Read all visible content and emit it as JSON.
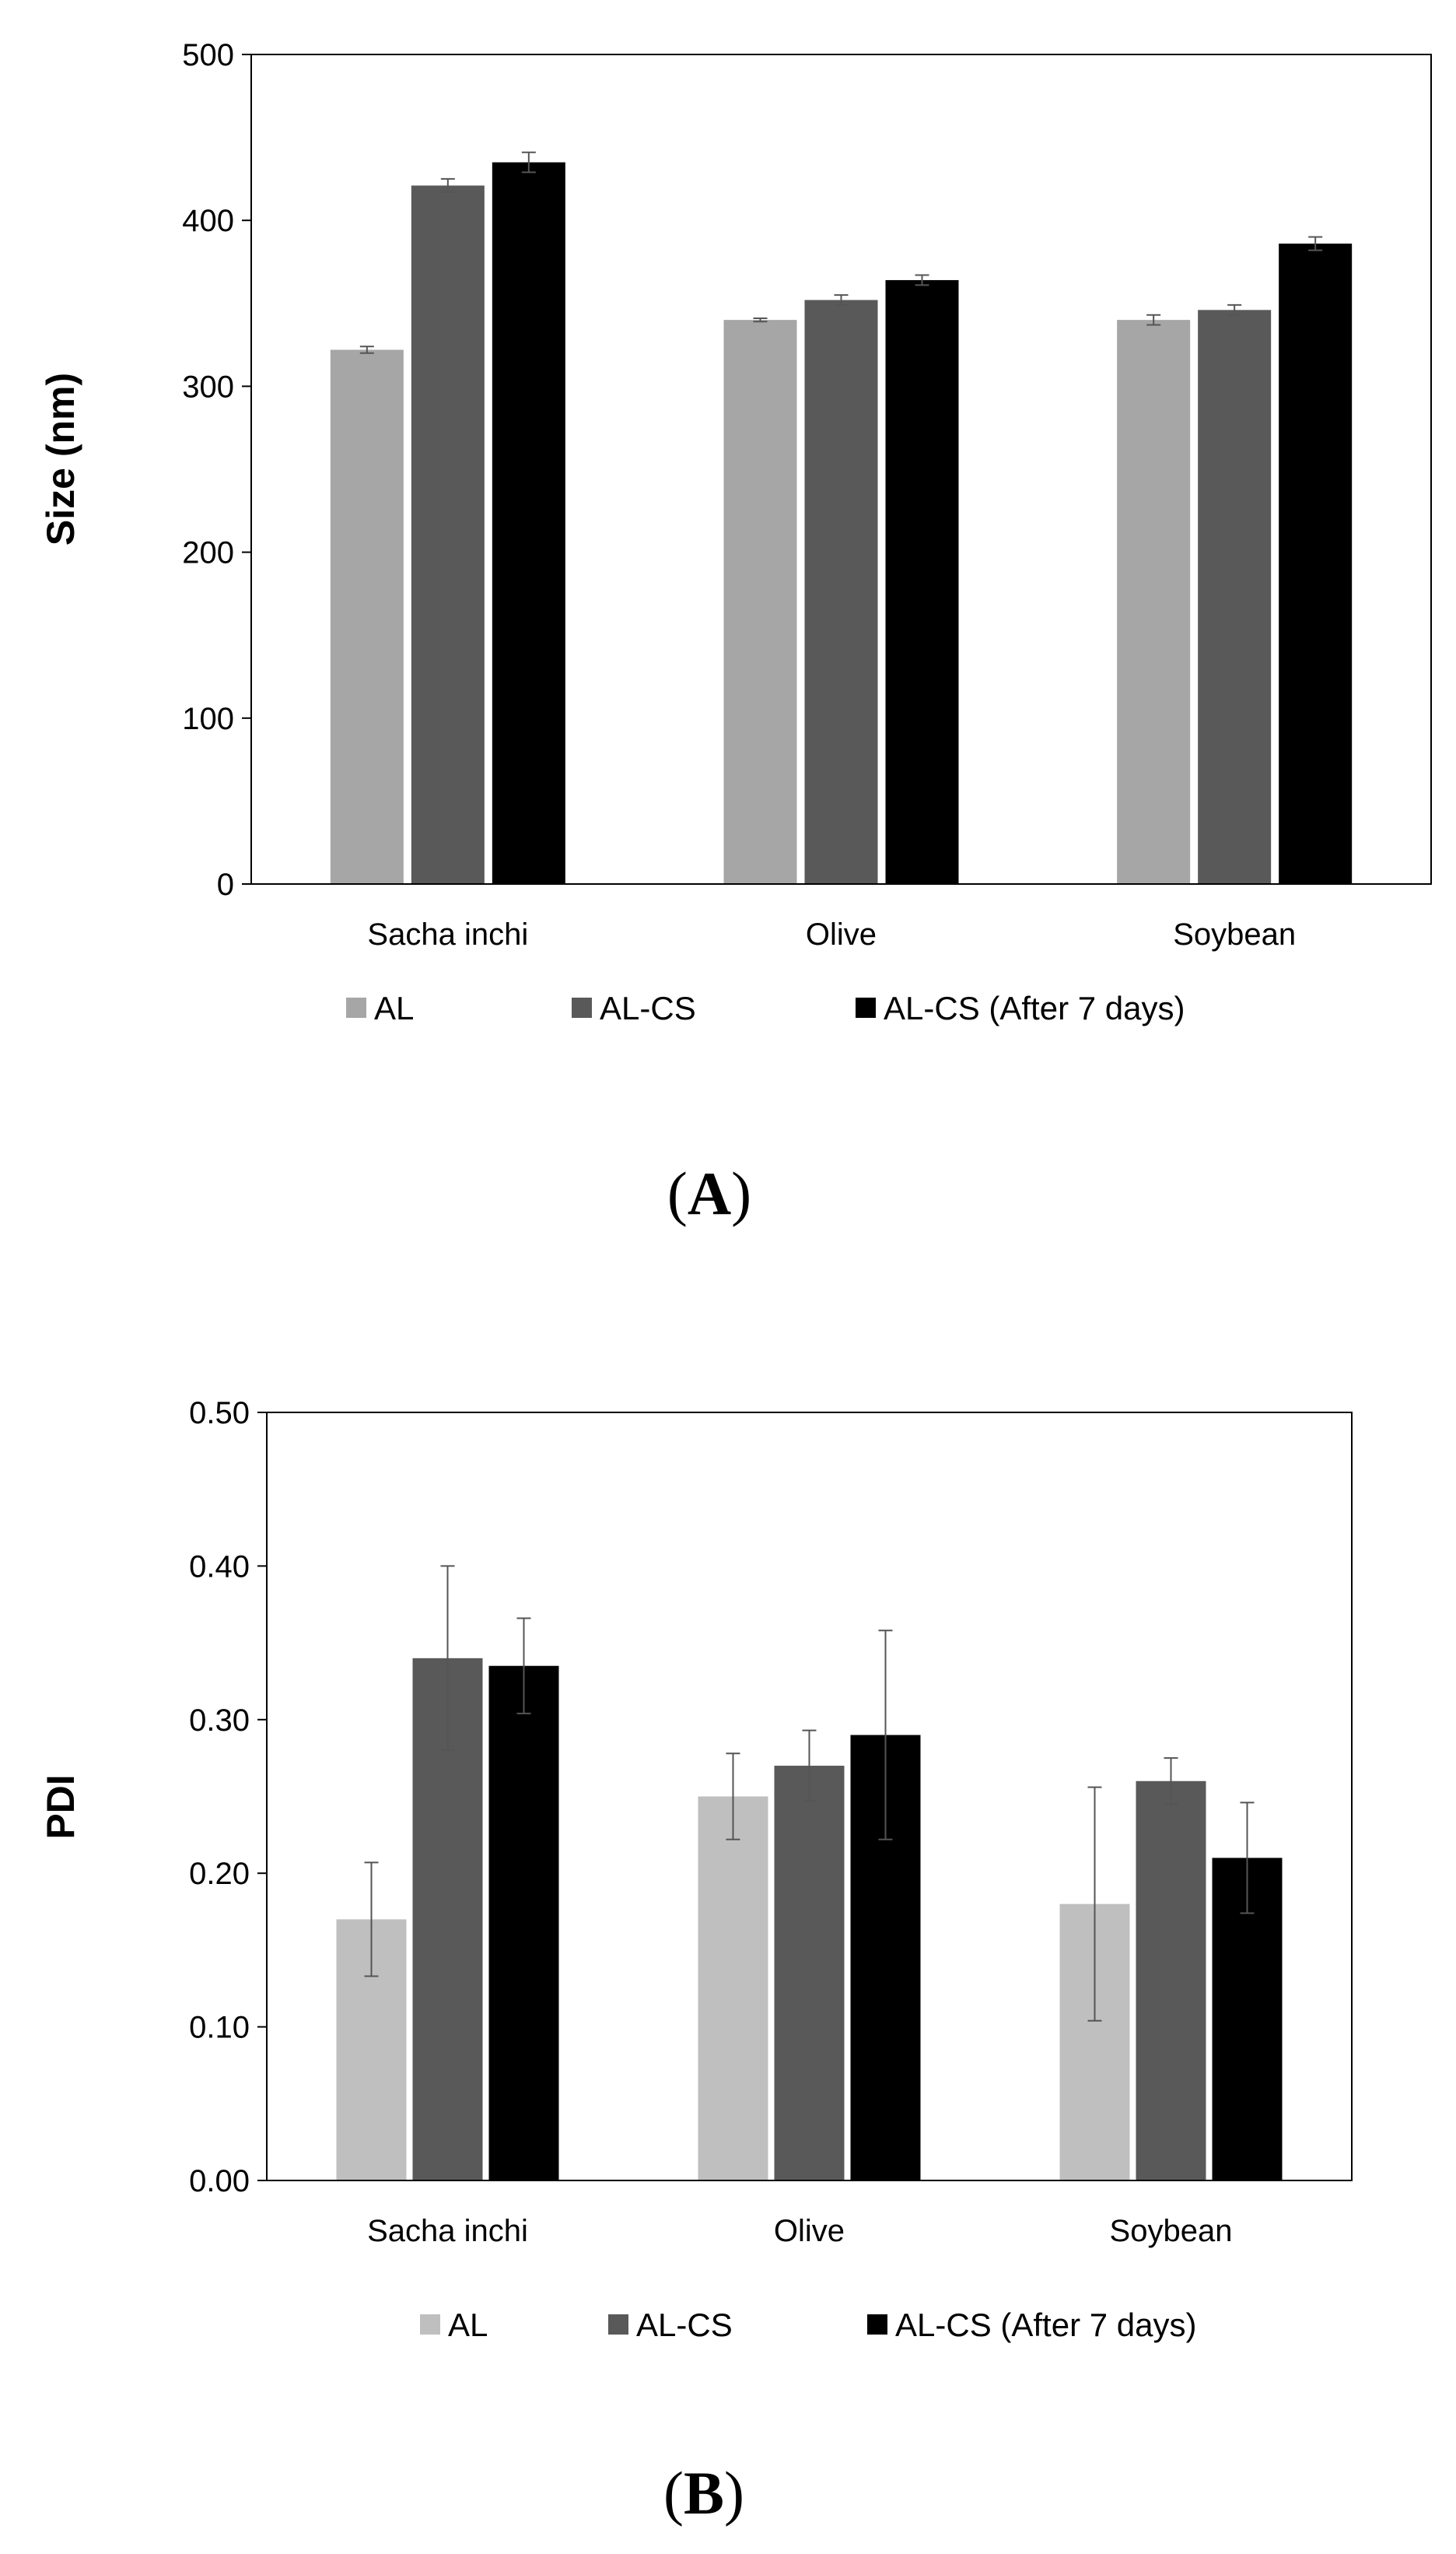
{
  "chart_data": [
    {
      "type": "bar",
      "panel_label": "A",
      "ylabel": "Size (nm)",
      "categories": [
        "Sacha inchi",
        "Olive",
        "Soybean"
      ],
      "ylim": [
        0,
        500
      ],
      "yticks": [
        0,
        100,
        200,
        300,
        400,
        500
      ],
      "ytick_labels": [
        "0",
        "100",
        "200",
        "300",
        "400",
        "500"
      ],
      "grid": false,
      "legend_position": "bottom",
      "series": [
        {
          "name": "AL",
          "values": [
            322,
            340,
            340
          ],
          "errors": [
            2,
            1,
            3
          ],
          "color": "#a6a6a6"
        },
        {
          "name": "AL-CS",
          "values": [
            421,
            352,
            346
          ],
          "errors": [
            4,
            3,
            3
          ],
          "color": "#595959"
        },
        {
          "name": "AL-CS (After 7 days)",
          "values": [
            435,
            364,
            386
          ],
          "errors": [
            6,
            3,
            4
          ],
          "color": "#000000"
        }
      ]
    },
    {
      "type": "bar",
      "panel_label": "B",
      "ylabel": "PDI",
      "categories": [
        "Sacha inchi",
        "Olive",
        "Soybean"
      ],
      "ylim": [
        0,
        0.5
      ],
      "yticks": [
        0,
        0.1,
        0.2,
        0.3,
        0.4,
        0.5
      ],
      "ytick_labels": [
        "0.00",
        "0.10",
        "0.20",
        "0.30",
        "0.40",
        "0.50"
      ],
      "grid": false,
      "legend_position": "bottom",
      "series": [
        {
          "name": "AL",
          "values": [
            0.17,
            0.25,
            0.18
          ],
          "errors": [
            0.037,
            0.028,
            0.076
          ],
          "color": "#bfbfbf"
        },
        {
          "name": "AL-CS",
          "values": [
            0.34,
            0.27,
            0.26
          ],
          "errors": [
            0.06,
            0.023,
            0.015
          ],
          "color": "#595959"
        },
        {
          "name": "AL-CS (After 7 days)",
          "values": [
            0.335,
            0.29,
            0.21
          ],
          "errors": [
            0.031,
            0.068,
            0.036
          ],
          "color": "#000000"
        }
      ]
    }
  ]
}
